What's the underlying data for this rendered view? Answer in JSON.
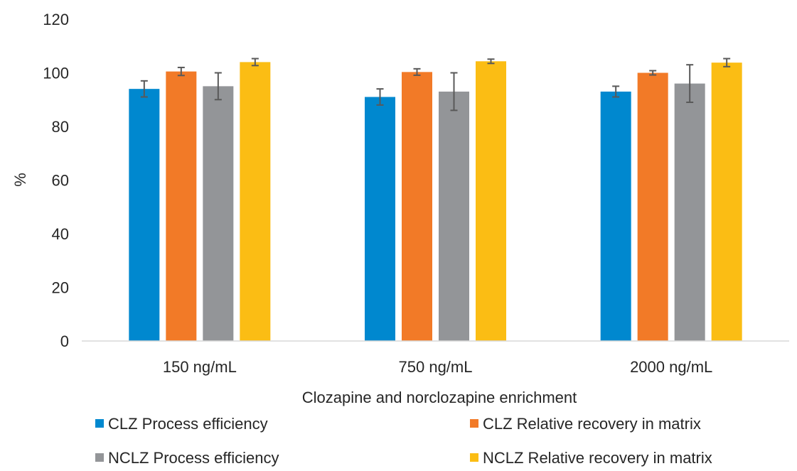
{
  "chart_data": {
    "type": "bar",
    "title": "",
    "xlabel": "Clozapine and norclozapine enrichment",
    "ylabel": "%",
    "ylim": [
      0,
      120
    ],
    "yticks": [
      0,
      20,
      40,
      60,
      80,
      100,
      120
    ],
    "categories": [
      "150 ng/mL",
      "750 ng/mL",
      "2000 ng/mL"
    ],
    "grid": false,
    "legend_position": "bottom",
    "series": [
      {
        "name": "CLZ Process efficiency",
        "color": "#0088CF",
        "values": [
          94,
          91,
          93
        ],
        "errors": [
          3,
          3,
          2
        ]
      },
      {
        "name": "CLZ Relative recovery in matrix",
        "color": "#F27A27",
        "values": [
          100.5,
          100.3,
          100
        ],
        "errors": [
          1.5,
          1.2,
          0.8
        ]
      },
      {
        "name": "NCLZ Process efficiency",
        "color": "#939598",
        "values": [
          95,
          93,
          96
        ],
        "errors": [
          5,
          7,
          7
        ]
      },
      {
        "name": "NCLZ Relative recovery in matrix",
        "color": "#FBBD14",
        "values": [
          104,
          104.3,
          103.8
        ],
        "errors": [
          1.3,
          0.8,
          1.5
        ]
      }
    ]
  }
}
